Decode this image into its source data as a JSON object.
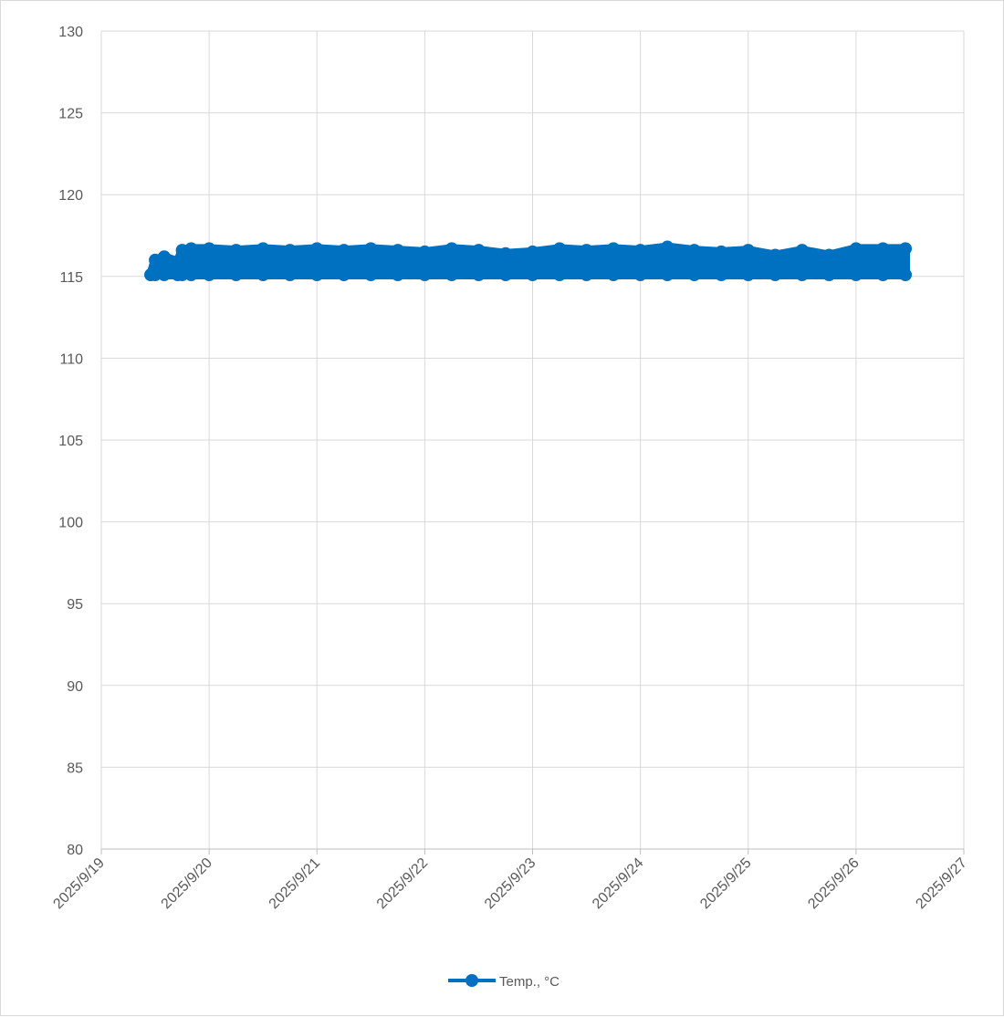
{
  "chart_data": {
    "type": "line",
    "title": "",
    "xlabel": "",
    "ylabel": "",
    "ylim": [
      80,
      130
    ],
    "y_ticks": [
      80,
      85,
      90,
      95,
      100,
      105,
      110,
      115,
      120,
      125,
      130
    ],
    "xlim": [
      "2025/9/19",
      "2025/9/27"
    ],
    "x_ticks": [
      "2025/9/19",
      "2025/9/20",
      "2025/9/21",
      "2025/9/22",
      "2025/9/23",
      "2025/9/24",
      "2025/9/25",
      "2025/9/26",
      "2025/9/27"
    ],
    "grid": true,
    "legend_position": "bottom",
    "series": [
      {
        "name": "Temp., °C",
        "color": "#0070c0",
        "marker": "circle",
        "x_start": "2025/9/19 11:00",
        "x_end": "2025/9/26 11:00",
        "points": [
          [
            "2025/9/19 11:00",
            115.1
          ],
          [
            "2025/9/19 12:00",
            116.0
          ],
          [
            "2025/9/19 14:00",
            116.2
          ],
          [
            "2025/9/19 17:00",
            115.9
          ],
          [
            "2025/9/19 18:00",
            116.6
          ],
          [
            "2025/9/19 20:00",
            116.7
          ],
          [
            "2025/9/20 00:00",
            116.7
          ],
          [
            "2025/9/20 06:00",
            116.6
          ],
          [
            "2025/9/20 12:00",
            116.7
          ],
          [
            "2025/9/20 18:00",
            116.6
          ],
          [
            "2025/9/21 00:00",
            116.7
          ],
          [
            "2025/9/21 06:00",
            116.6
          ],
          [
            "2025/9/21 12:00",
            116.7
          ],
          [
            "2025/9/21 18:00",
            116.6
          ],
          [
            "2025/9/22 00:00",
            116.5
          ],
          [
            "2025/9/22 06:00",
            116.7
          ],
          [
            "2025/9/22 12:00",
            116.6
          ],
          [
            "2025/9/22 18:00",
            116.4
          ],
          [
            "2025/9/23 00:00",
            116.5
          ],
          [
            "2025/9/23 06:00",
            116.7
          ],
          [
            "2025/9/23 12:00",
            116.6
          ],
          [
            "2025/9/23 18:00",
            116.7
          ],
          [
            "2025/9/24 00:00",
            116.6
          ],
          [
            "2025/9/24 06:00",
            116.8
          ],
          [
            "2025/9/24 12:00",
            116.6
          ],
          [
            "2025/9/24 18:00",
            116.5
          ],
          [
            "2025/9/25 00:00",
            116.6
          ],
          [
            "2025/9/25 06:00",
            116.3
          ],
          [
            "2025/9/25 12:00",
            116.6
          ],
          [
            "2025/9/25 18:00",
            116.3
          ],
          [
            "2025/9/26 00:00",
            116.7
          ],
          [
            "2025/9/26 06:00",
            116.7
          ],
          [
            "2025/9/26 11:00",
            116.7
          ]
        ],
        "baseline": 115.1
      }
    ]
  }
}
